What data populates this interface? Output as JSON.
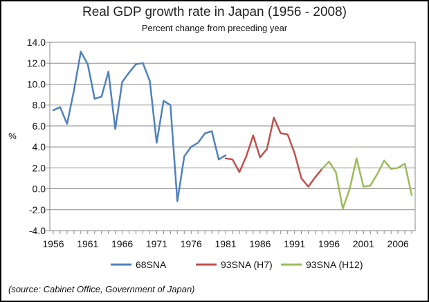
{
  "chart_data": {
    "type": "line",
    "title": "Real GDP growth rate in Japan (1956 - 2008)",
    "subtitle": "Percent change from preceding year",
    "ylabel": "%",
    "xlabel": "",
    "ylim": [
      -4,
      14
    ],
    "yticks": [
      "14.0",
      "12.0",
      "10.0",
      "8.0",
      "6.0",
      "4.0",
      "2.0",
      "0.0",
      "-2.0",
      "-4.0"
    ],
    "xticks": [
      "1956",
      "1961",
      "1966",
      "1971",
      "1976",
      "1981",
      "1986",
      "1991",
      "1996",
      "2001",
      "2006"
    ],
    "grid": true,
    "legend_position": "bottom",
    "series": [
      {
        "name": "68SNA",
        "color": "#4f81bd",
        "x": [
          1956,
          1957,
          1958,
          1959,
          1960,
          1961,
          1962,
          1963,
          1964,
          1965,
          1966,
          1967,
          1968,
          1969,
          1970,
          1971,
          1972,
          1973,
          1974,
          1975,
          1976,
          1977,
          1978,
          1979,
          1980,
          1981
        ],
        "values": [
          7.5,
          7.8,
          6.2,
          9.4,
          13.1,
          11.9,
          8.6,
          8.8,
          11.2,
          5.7,
          10.2,
          11.1,
          11.9,
          12.0,
          10.3,
          4.4,
          8.4,
          8.0,
          -1.2,
          3.1,
          4.0,
          4.4,
          5.3,
          5.5,
          2.8,
          3.2
        ]
      },
      {
        "name": "93SNA (H7)",
        "color": "#c0504d",
        "x": [
          1981,
          1982,
          1983,
          1984,
          1985,
          1986,
          1987,
          1988,
          1989,
          1990,
          1991,
          1992,
          1993,
          1994,
          1995
        ],
        "values": [
          2.9,
          2.8,
          1.6,
          3.1,
          5.1,
          3.0,
          3.8,
          6.8,
          5.3,
          5.2,
          3.4,
          1.0,
          0.2,
          1.1,
          1.9
        ]
      },
      {
        "name": "93SNA (H12)",
        "color": "#9bbb59",
        "x": [
          1995,
          1996,
          1997,
          1998,
          1999,
          2000,
          2001,
          2002,
          2003,
          2004,
          2005,
          2006,
          2007,
          2008
        ],
        "values": [
          1.9,
          2.6,
          1.6,
          -1.9,
          0.0,
          2.9,
          0.2,
          0.3,
          1.4,
          2.7,
          1.9,
          2.0,
          2.4,
          -0.6
        ]
      }
    ]
  },
  "source_text": "(source:  Cabinet Office, Government of Japan)"
}
